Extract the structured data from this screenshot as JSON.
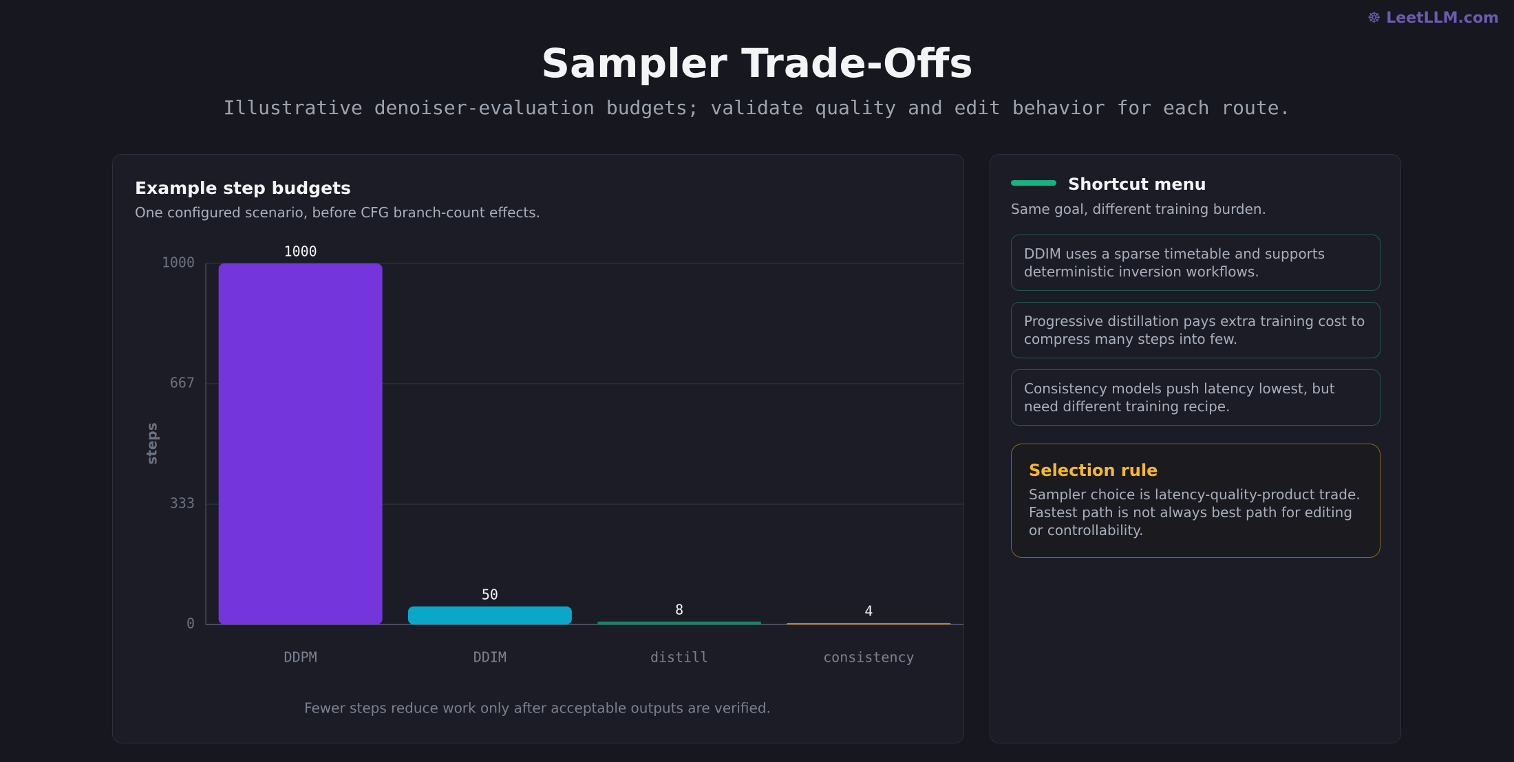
{
  "header": {
    "title": "Sampler Trade-Offs",
    "subtitle": "Illustrative denoiser-evaluation budgets; validate quality and edit behavior for each route.",
    "logo": "LeetLLM.com"
  },
  "chart_data": {
    "type": "bar",
    "title": "Example step budgets",
    "subtitle": "One configured scenario, before CFG branch-count effects.",
    "ylabel": "steps",
    "categories": [
      "DDPM",
      "DDIM",
      "distill",
      "consistency"
    ],
    "values": [
      1000,
      50,
      8,
      4
    ],
    "colors": [
      "#7435dd",
      "#0aa8c8",
      "#0d8a63",
      "#d47a0f"
    ],
    "ylim": [
      0,
      1000
    ],
    "yticks": [
      0,
      333,
      667,
      1000
    ],
    "grid": true,
    "footnote": "Fewer steps reduce work only after acceptable outputs are verified."
  },
  "sidebar": {
    "title": "Shortcut menu",
    "subtitle": "Same goal, different training burden.",
    "items": [
      "DDIM uses a sparse timetable and supports deterministic inversion workflows.",
      "Progressive distillation pays extra training cost to compress many steps into few.",
      "Consistency models push latency lowest, but need different training recipe."
    ],
    "rule": {
      "title": "Selection rule",
      "text": "Sampler choice is latency-quality-product trade. Fastest path is not always best path for editing or controllability."
    }
  }
}
